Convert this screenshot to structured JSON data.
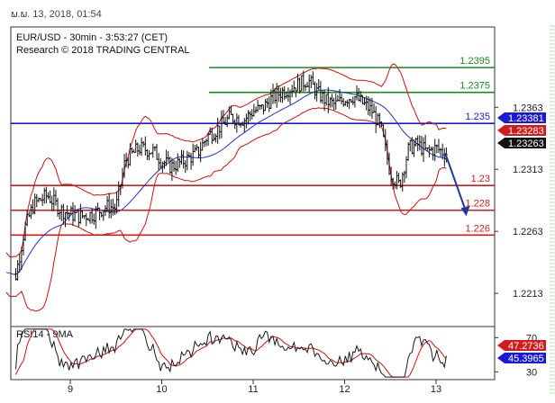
{
  "header": {
    "timestamp": "ພ.ພ. 13, 2018, 01:54",
    "chart_title": "EUR/USD - 30min - 3:53:27 (CET)",
    "copyright": "Research © 2018 TRADING CENTRAL"
  },
  "colors": {
    "resistance": "#1a8a1a",
    "pivot": "#1a1ad6",
    "support": "#d01c1c",
    "bollinger": "#cc1111",
    "moving_average": "#2233cc",
    "price": "#111111",
    "rsi_main": "#1a1a1a",
    "rsi_signal": "#cc1111",
    "forecast_arrow": "#1a3aa0"
  },
  "chart_data": [
    {
      "type": "candlestick",
      "title": "EUR/USD - 30min - 3:53:27 (CET)",
      "x_tick_labels": [
        "9",
        "10",
        "11",
        "12",
        "13"
      ],
      "y_tick_labels": [
        "1.2363",
        "1.2313",
        "1.2263",
        "1.2213"
      ],
      "y_ticks": [
        1.2363,
        1.2313,
        1.2263,
        1.2213
      ],
      "ylim": [
        1.2187,
        1.2427
      ],
      "grid": false,
      "levels": [
        {
          "value": 1.2395,
          "label": "1.2395",
          "kind": "resistance"
        },
        {
          "value": 1.2375,
          "label": "1.2375",
          "kind": "resistance"
        },
        {
          "value": 1.235,
          "label": "1.235",
          "kind": "pivot"
        },
        {
          "value": 1.23,
          "label": "1.23",
          "kind": "support"
        },
        {
          "value": 1.228,
          "label": "1.228",
          "kind": "support"
        },
        {
          "value": 1.226,
          "label": "1.226",
          "kind": "support"
        }
      ],
      "price_tags": [
        {
          "value": 1.23381,
          "label": "1.23381",
          "color": "#1a1ad6"
        },
        {
          "value": 1.23283,
          "label": "1.23283",
          "color": "#d01c1c"
        },
        {
          "value": 1.23263,
          "label": "1.23263",
          "color": "#111111"
        }
      ],
      "price_path": {
        "x": [
          8.3,
          8.4,
          8.5,
          8.6,
          8.75,
          8.9,
          9.0,
          9.1,
          9.25,
          9.4,
          9.5,
          9.6,
          9.75,
          9.9,
          10.0,
          10.1,
          10.25,
          10.4,
          10.5,
          10.6,
          10.75,
          10.9,
          11.0,
          11.1,
          11.2,
          11.3,
          11.45,
          11.6,
          11.7,
          11.8,
          11.9,
          12.0,
          12.1,
          12.2,
          12.3,
          12.4,
          12.5,
          12.6,
          12.7,
          12.8,
          12.9,
          13.0,
          13.1
        ],
        "y": [
          1.223,
          1.2226,
          1.2265,
          1.2285,
          1.2292,
          1.228,
          1.2277,
          1.2275,
          1.2277,
          1.2283,
          1.2282,
          1.232,
          1.233,
          1.2328,
          1.232,
          1.2315,
          1.232,
          1.2327,
          1.234,
          1.2345,
          1.2355,
          1.2353,
          1.236,
          1.2362,
          1.237,
          1.2375,
          1.238,
          1.2385,
          1.2375,
          1.2368,
          1.2365,
          1.237,
          1.2372,
          1.2366,
          1.236,
          1.2345,
          1.231,
          1.23,
          1.233,
          1.2333,
          1.2327,
          1.233,
          1.2326
        ]
      },
      "forecast_target": {
        "x": 13.32,
        "y": 1.2276
      },
      "rsi_panel": {
        "title": "RSI14 - 9MA",
        "y_tick_labels": [
          "70",
          "30"
        ],
        "ylim": [
          22,
          82
        ],
        "rsi_tags": [
          {
            "value": 47.2736,
            "label": "47.2736",
            "color": "#d01c1c"
          },
          {
            "value": 45.3965,
            "label": "45.3965",
            "color": "#1a1ad6"
          }
        ]
      }
    }
  ]
}
